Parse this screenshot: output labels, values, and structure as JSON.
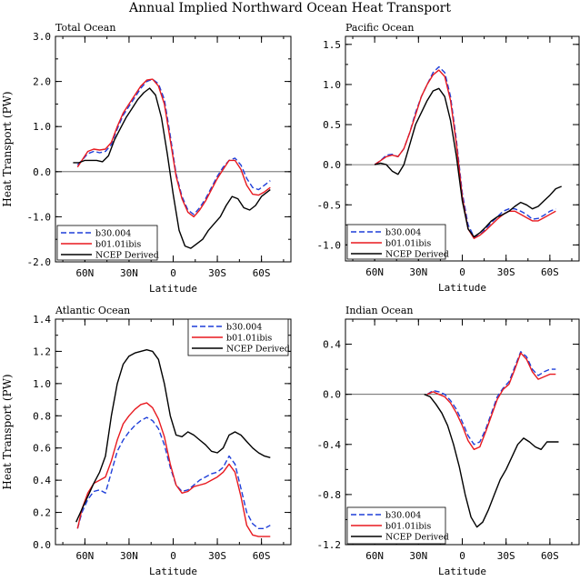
{
  "figure_title": "Annual Implied Northward Ocean Heat Transport",
  "colors": {
    "b30": "#1f3fd9",
    "b01": "#e8191f",
    "ncep": "#000000"
  },
  "legend_entries": [
    "b30.004",
    "b01.01ibis",
    "NCEP Derived"
  ],
  "chart_data": [
    {
      "type": "line",
      "title": "Total Ocean",
      "xlabel": "Latitude",
      "ylabel": "Heat Transport (PW)",
      "x_axis_note": "latitude, north to south; 60N=60, 0=0, 60S=-60",
      "xlim": [
        80,
        -80
      ],
      "ylim": [
        -2.0,
        3.0
      ],
      "yticks": [
        "-2.0",
        "-1.0",
        "0.0",
        "1.0",
        "2.0",
        "3.0"
      ],
      "xticks": [
        "60N",
        "30N",
        "0",
        "30S",
        "60S"
      ],
      "legend_position": "bottom-left",
      "series": [
        {
          "name": "b30.004",
          "style": "dashed",
          "x": [
            65,
            62,
            58,
            54,
            50,
            46,
            42,
            38,
            34,
            30,
            26,
            22,
            18,
            14,
            10,
            6,
            2,
            -2,
            -6,
            -10,
            -14,
            -18,
            -22,
            -26,
            -30,
            -34,
            -38,
            -42,
            -46,
            -50,
            -54,
            -58,
            -62,
            -66
          ],
          "y": [
            0.15,
            0.25,
            0.4,
            0.45,
            0.42,
            0.45,
            0.6,
            0.95,
            1.25,
            1.45,
            1.65,
            1.85,
            2.0,
            2.05,
            1.95,
            1.6,
            0.8,
            -0.05,
            -0.55,
            -0.85,
            -0.95,
            -0.8,
            -0.6,
            -0.35,
            -0.1,
            0.1,
            0.25,
            0.3,
            0.15,
            -0.15,
            -0.35,
            -0.4,
            -0.3,
            -0.2
          ]
        },
        {
          "name": "b01.01ibis",
          "style": "solid",
          "x": [
            65,
            62,
            58,
            54,
            50,
            46,
            42,
            38,
            34,
            30,
            26,
            22,
            18,
            14,
            10,
            6,
            2,
            -2,
            -6,
            -10,
            -14,
            -18,
            -22,
            -26,
            -30,
            -34,
            -38,
            -42,
            -46,
            -50,
            -54,
            -58,
            -62,
            -66
          ],
          "y": [
            0.1,
            0.25,
            0.45,
            0.5,
            0.48,
            0.5,
            0.65,
            1.0,
            1.3,
            1.5,
            1.7,
            1.9,
            2.03,
            2.05,
            1.9,
            1.5,
            0.7,
            -0.1,
            -0.6,
            -0.9,
            -1.0,
            -0.85,
            -0.65,
            -0.4,
            -0.15,
            0.05,
            0.25,
            0.25,
            0.05,
            -0.3,
            -0.5,
            -0.52,
            -0.45,
            -0.35
          ]
        },
        {
          "name": "NCEP Derived",
          "style": "solid",
          "x": [
            68,
            64,
            60,
            56,
            52,
            48,
            44,
            40,
            36,
            32,
            28,
            24,
            20,
            16,
            12,
            8,
            4,
            0,
            -4,
            -8,
            -12,
            -16,
            -20,
            -24,
            -28,
            -32,
            -36,
            -40,
            -44,
            -48,
            -52,
            -56,
            -60,
            -64,
            -66
          ],
          "y": [
            0.2,
            0.2,
            0.25,
            0.25,
            0.25,
            0.22,
            0.35,
            0.7,
            0.95,
            1.2,
            1.4,
            1.6,
            1.75,
            1.85,
            1.7,
            1.2,
            0.4,
            -0.5,
            -1.3,
            -1.65,
            -1.7,
            -1.6,
            -1.5,
            -1.3,
            -1.15,
            -1.0,
            -0.75,
            -0.55,
            -0.6,
            -0.8,
            -0.85,
            -0.75,
            -0.55,
            -0.45,
            -0.4
          ]
        }
      ]
    },
    {
      "type": "line",
      "title": "Pacific Ocean",
      "xlabel": "Latitude",
      "ylabel": "",
      "xlim": [
        80,
        -80
      ],
      "ylim": [
        -1.2,
        1.6
      ],
      "yticks": [
        "-1.0",
        "-0.5",
        "0.0",
        "0.5",
        "1.0",
        "1.5"
      ],
      "xticks": [
        "60N",
        "30N",
        "0",
        "30S",
        "60S"
      ],
      "legend_position": "bottom-left",
      "series": [
        {
          "name": "b30.004",
          "style": "dashed",
          "x": [
            60,
            56,
            52,
            48,
            44,
            40,
            36,
            32,
            28,
            24,
            20,
            16,
            12,
            8,
            4,
            0,
            -4,
            -8,
            -12,
            -16,
            -20,
            -24,
            -28,
            -32,
            -36,
            -40,
            -44,
            -48,
            -52,
            -56,
            -60,
            -64
          ],
          "y": [
            0.0,
            0.05,
            0.12,
            0.13,
            0.1,
            0.2,
            0.4,
            0.65,
            0.85,
            1.0,
            1.15,
            1.22,
            1.15,
            0.85,
            0.3,
            -0.35,
            -0.75,
            -0.9,
            -0.88,
            -0.8,
            -0.72,
            -0.65,
            -0.58,
            -0.55,
            -0.55,
            -0.58,
            -0.62,
            -0.68,
            -0.67,
            -0.63,
            -0.58,
            -0.55
          ]
        },
        {
          "name": "b01.01ibis",
          "style": "solid",
          "x": [
            60,
            56,
            52,
            48,
            44,
            40,
            36,
            32,
            28,
            24,
            20,
            16,
            12,
            8,
            4,
            0,
            -4,
            -8,
            -12,
            -16,
            -20,
            -24,
            -28,
            -32,
            -36,
            -40,
            -44,
            -48,
            -52,
            -56,
            -60,
            -64
          ],
          "y": [
            0.0,
            0.05,
            0.1,
            0.12,
            0.1,
            0.2,
            0.4,
            0.62,
            0.85,
            1.0,
            1.12,
            1.18,
            1.1,
            0.8,
            0.25,
            -0.4,
            -0.8,
            -0.92,
            -0.88,
            -0.82,
            -0.75,
            -0.68,
            -0.62,
            -0.58,
            -0.58,
            -0.62,
            -0.66,
            -0.7,
            -0.7,
            -0.66,
            -0.62,
            -0.58
          ]
        },
        {
          "name": "NCEP Derived",
          "style": "solid",
          "x": [
            60,
            56,
            52,
            48,
            44,
            40,
            36,
            32,
            28,
            24,
            20,
            16,
            12,
            8,
            4,
            0,
            -4,
            -8,
            -12,
            -16,
            -20,
            -24,
            -28,
            -32,
            -36,
            -40,
            -44,
            -48,
            -52,
            -56,
            -60,
            -64,
            -68
          ],
          "y": [
            0.0,
            0.02,
            0.0,
            -0.08,
            -0.12,
            0.0,
            0.25,
            0.5,
            0.65,
            0.8,
            0.92,
            0.95,
            0.85,
            0.55,
            0.1,
            -0.45,
            -0.8,
            -0.9,
            -0.85,
            -0.78,
            -0.7,
            -0.65,
            -0.62,
            -0.58,
            -0.52,
            -0.47,
            -0.5,
            -0.55,
            -0.52,
            -0.45,
            -0.38,
            -0.3,
            -0.27
          ]
        }
      ]
    },
    {
      "type": "line",
      "title": "Atlantic Ocean",
      "xlabel": "Latitude",
      "ylabel": "Heat Transport (PW)",
      "xlim": [
        80,
        -80
      ],
      "ylim": [
        0.0,
        1.4
      ],
      "yticks": [
        "0.0",
        "0.2",
        "0.4",
        "0.6",
        "0.8",
        "1.0",
        "1.2",
        "1.4"
      ],
      "xticks": [
        "60N",
        "30N",
        "0",
        "30S",
        "60S"
      ],
      "legend_position": "top-right",
      "series": [
        {
          "name": "b30.004",
          "style": "dashed",
          "x": [
            65,
            62,
            58,
            54,
            50,
            46,
            42,
            38,
            34,
            30,
            26,
            22,
            18,
            14,
            10,
            6,
            2,
            -2,
            -6,
            -10,
            -14,
            -18,
            -22,
            -26,
            -30,
            -34,
            -38,
            -42,
            -46,
            -50,
            -54,
            -58,
            -62,
            -66
          ],
          "y": [
            0.1,
            0.2,
            0.28,
            0.33,
            0.34,
            0.32,
            0.45,
            0.58,
            0.65,
            0.7,
            0.74,
            0.77,
            0.79,
            0.77,
            0.72,
            0.62,
            0.48,
            0.37,
            0.33,
            0.34,
            0.37,
            0.4,
            0.42,
            0.44,
            0.45,
            0.48,
            0.55,
            0.5,
            0.35,
            0.2,
            0.13,
            0.1,
            0.1,
            0.12
          ]
        },
        {
          "name": "b01.01ibis",
          "style": "solid",
          "x": [
            65,
            62,
            58,
            54,
            50,
            46,
            42,
            38,
            34,
            30,
            26,
            22,
            18,
            14,
            10,
            6,
            2,
            -2,
            -6,
            -10,
            -14,
            -18,
            -22,
            -26,
            -30,
            -34,
            -38,
            -42,
            -46,
            -50,
            -54,
            -58,
            -62,
            -66
          ],
          "y": [
            0.1,
            0.22,
            0.32,
            0.38,
            0.4,
            0.42,
            0.52,
            0.65,
            0.75,
            0.8,
            0.84,
            0.87,
            0.88,
            0.85,
            0.78,
            0.67,
            0.5,
            0.37,
            0.32,
            0.33,
            0.36,
            0.37,
            0.38,
            0.4,
            0.42,
            0.45,
            0.5,
            0.45,
            0.3,
            0.12,
            0.06,
            0.05,
            0.05,
            0.05
          ]
        },
        {
          "name": "NCEP Derived",
          "style": "solid",
          "x": [
            66,
            62,
            58,
            54,
            50,
            46,
            42,
            38,
            34,
            30,
            26,
            22,
            18,
            14,
            10,
            6,
            2,
            -2,
            -6,
            -10,
            -14,
            -18,
            -22,
            -26,
            -30,
            -34,
            -38,
            -42,
            -46,
            -50,
            -54,
            -58,
            -62,
            -66
          ],
          "y": [
            0.14,
            0.22,
            0.3,
            0.38,
            0.45,
            0.55,
            0.8,
            1.0,
            1.12,
            1.17,
            1.19,
            1.2,
            1.21,
            1.2,
            1.15,
            1.0,
            0.8,
            0.68,
            0.67,
            0.7,
            0.68,
            0.65,
            0.62,
            0.58,
            0.57,
            0.6,
            0.68,
            0.7,
            0.68,
            0.64,
            0.6,
            0.57,
            0.55,
            0.54
          ]
        }
      ]
    },
    {
      "type": "line",
      "title": "Indian Ocean",
      "xlabel": "Latitude",
      "ylabel": "",
      "xlim": [
        80,
        -80
      ],
      "ylim": [
        -1.2,
        0.6
      ],
      "yticks": [
        "-1.2",
        "-0.8",
        "-0.4",
        "0.0",
        "0.4"
      ],
      "xticks": [
        "60N",
        "30N",
        "0",
        "30S",
        "60S"
      ],
      "legend_position": "bottom-left",
      "series": [
        {
          "name": "b30.004",
          "style": "dashed",
          "x": [
            24,
            20,
            16,
            12,
            8,
            4,
            0,
            -4,
            -8,
            -12,
            -16,
            -20,
            -24,
            -28,
            -32,
            -36,
            -40,
            -44,
            -48,
            -52,
            -56,
            -60,
            -64
          ],
          "y": [
            0.0,
            0.03,
            0.02,
            0.0,
            -0.05,
            -0.12,
            -0.22,
            -0.33,
            -0.4,
            -0.38,
            -0.28,
            -0.15,
            -0.02,
            0.05,
            0.1,
            0.22,
            0.34,
            0.3,
            0.2,
            0.15,
            0.18,
            0.2,
            0.2
          ]
        },
        {
          "name": "b01.01ibis",
          "style": "solid",
          "x": [
            24,
            20,
            16,
            12,
            8,
            4,
            0,
            -4,
            -8,
            -12,
            -16,
            -20,
            -24,
            -28,
            -32,
            -36,
            -40,
            -44,
            -48,
            -52,
            -56,
            -60,
            -64
          ],
          "y": [
            0.0,
            0.02,
            0.0,
            -0.02,
            -0.07,
            -0.15,
            -0.25,
            -0.37,
            -0.44,
            -0.42,
            -0.3,
            -0.17,
            -0.04,
            0.04,
            0.08,
            0.2,
            0.33,
            0.28,
            0.18,
            0.12,
            0.14,
            0.16,
            0.16
          ]
        },
        {
          "name": "NCEP Derived",
          "style": "solid",
          "x": [
            26,
            22,
            18,
            14,
            10,
            6,
            2,
            -2,
            -6,
            -10,
            -14,
            -18,
            -22,
            -26,
            -30,
            -34,
            -38,
            -42,
            -46,
            -50,
            -54,
            -58,
            -62,
            -66
          ],
          "y": [
            0.0,
            -0.02,
            -0.08,
            -0.15,
            -0.25,
            -0.4,
            -0.58,
            -0.8,
            -0.98,
            -1.06,
            -1.02,
            -0.92,
            -0.8,
            -0.68,
            -0.6,
            -0.5,
            -0.4,
            -0.35,
            -0.38,
            -0.42,
            -0.44,
            -0.38,
            -0.38,
            -0.38
          ]
        }
      ]
    }
  ]
}
